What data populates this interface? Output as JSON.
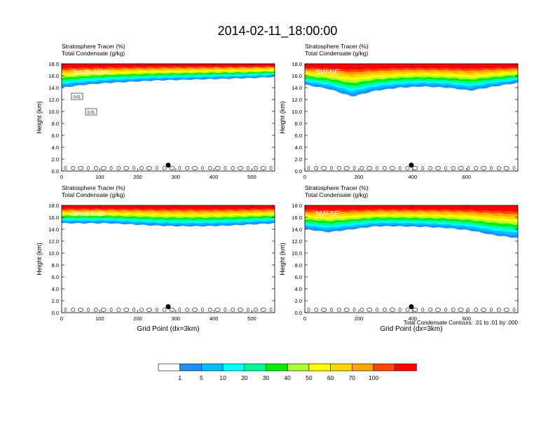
{
  "figure": {
    "title": "2014-02-11_18:00:00",
    "contour_note": "Total Condensate Contours: .01 to .01 by .000"
  },
  "chart_data": [
    {
      "type": "heatmap",
      "id": "south-north",
      "panel_label": "South-North",
      "title_lines": [
        "Stratosphere Tracer   (%)",
        "Total Condensate   (g/kg)"
      ],
      "xlabel": "",
      "ylabel": "Height (km)",
      "xlim": [
        0,
        560
      ],
      "ylim": [
        0,
        18
      ],
      "xticks": [
        0,
        100,
        200,
        300,
        400,
        500
      ],
      "yticks": [
        "0.0",
        "2.0",
        "4.0",
        "6.0",
        "8.0",
        "10.0",
        "12.0",
        "14.0",
        "16.0",
        "18.0"
      ],
      "marker_x": 280,
      "tracer_base_km": [
        14.0,
        14.5,
        14.8,
        15.0,
        15.2,
        15.3,
        15.4,
        15.5,
        15.6,
        15.8
      ],
      "contour_labels": [
        "0.01",
        "0.01"
      ]
    },
    {
      "type": "heatmap",
      "id": "sw-ne",
      "panel_label": "SW-NE",
      "title_lines": [
        "Stratosphere Tracer   (%)",
        "Total Condensate   (g/kg)"
      ],
      "xlabel": "",
      "ylabel": "Height (km)",
      "xlim": [
        0,
        790
      ],
      "ylim": [
        0,
        18
      ],
      "xticks": [
        0,
        200,
        400,
        600
      ],
      "yticks": [
        "0.0",
        "2.0",
        "4.0",
        "6.0",
        "8.0",
        "10.0",
        "12.0",
        "14.0",
        "16.0",
        "18.0"
      ],
      "marker_x": 395,
      "tracer_base_km": [
        14.5,
        13.8,
        12.5,
        13.5,
        14.0,
        14.2,
        14.0,
        13.5,
        14.2,
        14.8
      ],
      "contour_labels": []
    },
    {
      "type": "heatmap",
      "id": "west-east",
      "panel_label": "West-East",
      "title_lines": [
        "Stratosphere Tracer   (%)",
        "Total Condensate   (g/kg)"
      ],
      "xlabel": "Grid Point (dx=3km)",
      "ylabel": "Height (km)",
      "xlim": [
        0,
        560
      ],
      "ylim": [
        0,
        18
      ],
      "xticks": [
        0,
        100,
        200,
        300,
        400,
        500
      ],
      "yticks": [
        "0.0",
        "2.0",
        "4.0",
        "6.0",
        "8.0",
        "10.0",
        "12.0",
        "14.0",
        "16.0",
        "18.0"
      ],
      "marker_x": 280,
      "tracer_base_km": [
        15.0,
        15.0,
        15.0,
        14.8,
        14.6,
        14.5,
        14.5,
        14.6,
        14.8,
        15.0
      ],
      "contour_labels": []
    },
    {
      "type": "heatmap",
      "id": "nw-se",
      "panel_label": "NW-SE",
      "title_lines": [
        "Stratosphere Tracer   (%)",
        "Total Condensate   (g/kg)"
      ],
      "xlabel": "Grid Point (dx=3km)",
      "ylabel": "Height (km)",
      "xlim": [
        0,
        790
      ],
      "ylim": [
        0,
        18
      ],
      "xticks": [
        0,
        200,
        400,
        600
      ],
      "yticks": [
        "0.0",
        "2.0",
        "4.0",
        "6.0",
        "8.0",
        "10.0",
        "12.0",
        "14.0",
        "16.0",
        "18.0"
      ],
      "marker_x": 395,
      "tracer_base_km": [
        14.0,
        13.5,
        14.0,
        14.5,
        14.5,
        14.4,
        14.2,
        13.8,
        13.0,
        12.5
      ],
      "contour_labels": []
    }
  ],
  "colorbar": {
    "labels": [
      "1",
      "5",
      "10",
      "20",
      "30",
      "40",
      "50",
      "60",
      "70",
      "100"
    ],
    "colors": [
      "#ffffff",
      "#1e90ff",
      "#00bfff",
      "#00ffff",
      "#00fa9a",
      "#00ee00",
      "#adff2f",
      "#ffff00",
      "#ffd700",
      "#ffa500",
      "#ff4500",
      "#ff0000"
    ]
  }
}
